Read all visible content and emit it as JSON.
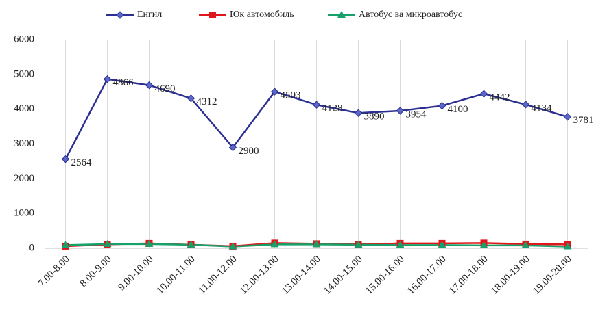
{
  "chart_data": {
    "type": "line",
    "categories": [
      "7.00-8.00",
      "8.00-9.00",
      "9.00-10.00",
      "10.00-11.00",
      "11.00-12.00",
      "12.00-13.00",
      "13.00-14.00",
      "14.00-15.00",
      "15.00-16.00",
      "16.00-17.00",
      "17.00-18.00",
      "18.00-19.00",
      "19.00-20.00"
    ],
    "series": [
      {
        "name": "Енгил",
        "color": "#2b2f91",
        "marker": "diamond",
        "labels": true,
        "values": [
          2564,
          4866,
          4690,
          4312,
          2900,
          4503,
          4128,
          3890,
          3954,
          4100,
          4442,
          4134,
          3781
        ]
      },
      {
        "name": "Юк автомобиль",
        "color": "#e0161b",
        "marker": "square",
        "labels": false,
        "values": [
          60,
          110,
          140,
          100,
          60,
          150,
          130,
          110,
          140,
          140,
          150,
          120,
          110
        ]
      },
      {
        "name": "Автобус ва микроавтобус",
        "color": "#16a06a",
        "marker": "triangle",
        "labels": false,
        "values": [
          90,
          120,
          120,
          100,
          50,
          110,
          110,
          100,
          90,
          90,
          80,
          80,
          50
        ]
      }
    ],
    "ylim": [
      0,
      6000
    ],
    "yticks": [
      0,
      1000,
      2000,
      3000,
      4000,
      5000,
      6000
    ],
    "grid": "x",
    "legend": "top"
  }
}
